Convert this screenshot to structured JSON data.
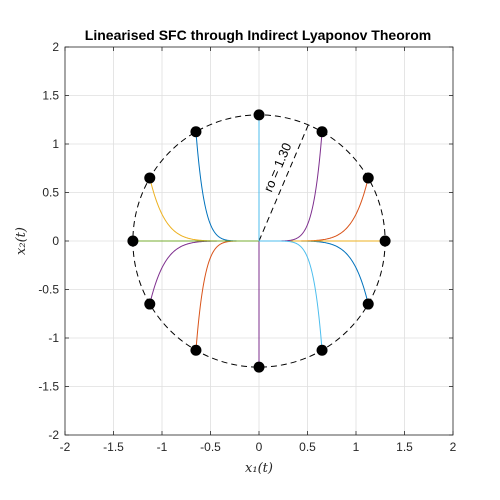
{
  "chart_data": {
    "type": "line",
    "title": "Linearised SFC through Indirect Lyaponov Theorom",
    "xlabel": "x₁(t)",
    "ylabel": "x₂(t)",
    "xlim": [
      -2,
      2
    ],
    "ylim": [
      -2,
      2
    ],
    "x_ticks": [
      "-2",
      "-1.5",
      "-1",
      "-0.5",
      "0",
      "0.5",
      "1",
      "1.5",
      "2"
    ],
    "y_ticks": [
      "2",
      "1.5",
      "1",
      "0.5",
      "0",
      "-0.5",
      "-1",
      "-1.5",
      "-2"
    ],
    "x_tick_values": [
      -2,
      -1.5,
      -1,
      -0.5,
      0,
      0.5,
      1,
      1.5,
      2
    ],
    "y_tick_values": [
      2,
      1.5,
      1,
      0.5,
      0,
      -0.5,
      -1,
      -1.5,
      -2
    ],
    "grid": true,
    "boundary_circle": {
      "radius": 1.3,
      "style": "dashed"
    },
    "annotation": {
      "text": "ro = 1.30"
    },
    "series": [
      {
        "color": "#0072BD",
        "start": [
          -0.65,
          1.126
        ]
      },
      {
        "color": "#0072BD",
        "start": [
          1.126,
          -0.65
        ]
      },
      {
        "color": "#D95319",
        "start": [
          1.126,
          0.65
        ]
      },
      {
        "color": "#D95319",
        "start": [
          -0.65,
          -1.126
        ]
      },
      {
        "color": "#EDB120",
        "start": [
          -1.126,
          0.65
        ]
      },
      {
        "color": "#EDB120",
        "start": [
          1.3,
          0.0
        ]
      },
      {
        "color": "#7E2F8E",
        "start": [
          0.65,
          1.126
        ]
      },
      {
        "color": "#7E2F8E",
        "start": [
          -1.126,
          -0.65
        ]
      },
      {
        "color": "#7E2F8E",
        "start": [
          0.0,
          -1.3
        ]
      },
      {
        "color": "#77AC30",
        "start": [
          -1.3,
          0.0
        ]
      },
      {
        "color": "#4DBEEE",
        "start": [
          0.0,
          1.3
        ]
      },
      {
        "color": "#4DBEEE",
        "start": [
          0.65,
          -1.126
        ]
      }
    ]
  }
}
